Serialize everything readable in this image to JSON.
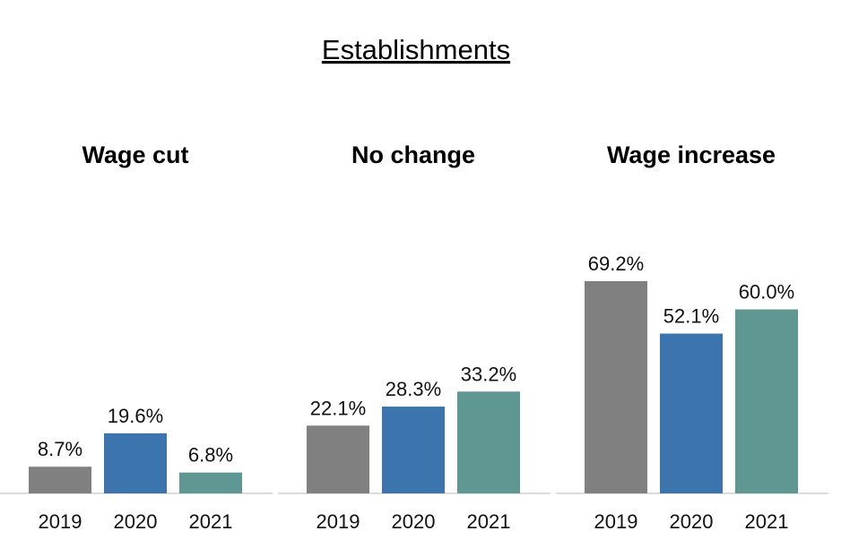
{
  "chart_data": {
    "type": "bar",
    "title": "Establishments",
    "groups": [
      "Wage cut",
      "No change",
      "Wage increase"
    ],
    "categories": [
      "2019",
      "2020",
      "2021"
    ],
    "unit": "%",
    "ylim": [
      0,
      80
    ],
    "colors": {
      "2019": "#808080",
      "2020": "#3c74ad",
      "2021": "#5f9792"
    },
    "values": [
      [
        8.7,
        19.6,
        6.8
      ],
      [
        22.1,
        28.3,
        33.2
      ],
      [
        69.2,
        52.1,
        60.0
      ]
    ],
    "labels": [
      [
        "8.7%",
        "19.6%",
        "6.8%"
      ],
      [
        "22.1%",
        "28.3%",
        "33.2%"
      ],
      [
        "69.2%",
        "52.1%",
        "60.0%"
      ]
    ]
  }
}
